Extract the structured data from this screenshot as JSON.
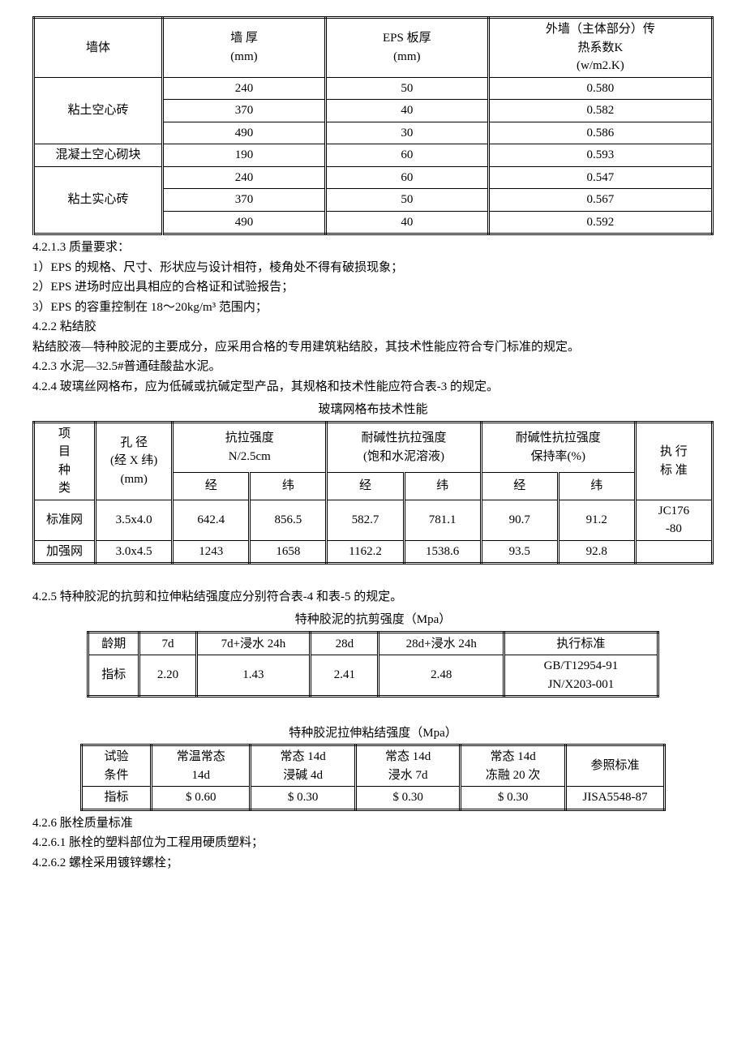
{
  "t1": {
    "h1": "墙体",
    "h2": "墙 厚\n(mm)",
    "h3": "EPS 板厚\n(mm)",
    "h4": "外墙（主体部分）传\n热系数K\n(w/m2.K)",
    "g1": "粘土空心砖",
    "r1c2": "240",
    "r1c3": "50",
    "r1c4": "0.580",
    "r2c2": "370",
    "r2c3": "40",
    "r2c4": "0.582",
    "r3c2": "490",
    "r3c3": "30",
    "r3c4": "0.586",
    "g2": "混凝土空心砌块",
    "r4c2": "190",
    "r4c3": "60",
    "r4c4": "0.593",
    "g3": "粘土实心砖",
    "r5c2": "240",
    "r5c3": "60",
    "r5c4": "0.547",
    "r6c2": "370",
    "r6c3": "50",
    "r6c4": "0.567",
    "r7c2": "490",
    "r7c3": "40",
    "r7c4": "0.592"
  },
  "text": {
    "p1": "4.2.1.3 质量要求：",
    "p2": "1）EPS 的规格、尺寸、形状应与设计相符，棱角处不得有破损现象；",
    "p3": "2）EPS 进场时应出具相应的合格证和试验报告；",
    "p4": "3）EPS 的容重控制在 18～20kg/m³ 范围内；",
    "p5": "4.2.2 粘结胶",
    "p6": "粘结胶液—特种胶泥的主要成分，应采用合格的专用建筑粘结胶，其技术性能应符合专门标准的规定。",
    "p7": "4.2.3 水泥—32.5#普通硅酸盐水泥。",
    "p8": "4.2.4 玻璃丝网格布，应为低碱或抗碱定型产品，其规格和技术性能应符合表-3 的规定。",
    "cap2": "玻璃网格布技术性能",
    "p9": "4.2.5 特种胶泥的抗剪和拉伸粘结强度应分别符合表-4 和表-5 的规定。",
    "cap3": "特种胶泥的抗剪强度（Mpa）",
    "cap4": "特种胶泥拉伸粘结强度（Mpa）",
    "p10": "4.2.6 胀栓质量标准",
    "p11": "4.2.6.1 胀栓的塑料部位为工程用硬质塑料；",
    "p12": "4.2.6.2 螺栓采用镀锌螺栓；"
  },
  "t2": {
    "h1": "项\n目\n种\n类",
    "h2": "孔 径\n(经 X 纬)\n(mm)",
    "h3": "抗拉强度\nN/2.5cm",
    "h4": "耐碱性抗拉强度\n(饱和水泥溶液)",
    "h5": "耐碱性抗拉强度\n保持率(%)",
    "h6": "执 行\n标 准",
    "sub_j": "经",
    "sub_w": "纬",
    "r1c1": "标准网",
    "r1c2": "3.5x4.0",
    "r1c3": "642.4",
    "r1c4": "856.5",
    "r1c5": "582.7",
    "r1c6": "781.1",
    "r1c7": "90.7",
    "r1c8": "91.2",
    "r1c9": "JC176\n-80",
    "r2c1": "加强网",
    "r2c2": "3.0x4.5",
    "r2c3": "1243",
    "r2c4": "1658",
    "r2c5": "1162.2",
    "r2c6": "1538.6",
    "r2c7": "93.5",
    "r2c8": "92.8",
    "r2c9": ""
  },
  "t3": {
    "h1": "龄期",
    "h2": "7d",
    "h3": "7d+浸水 24h",
    "h4": "28d",
    "h5": "28d+浸水 24h",
    "h6": "执行标准",
    "r1c1": "指标",
    "r1c2": "2.20",
    "r1c3": "1.43",
    "r1c4": "2.41",
    "r1c5": "2.48",
    "r1c6": "GB/T12954-91\nJN/X203-001"
  },
  "t4": {
    "h1": "试验\n条件",
    "h2": "常温常态\n14d",
    "h3": "常态 14d\n浸碱 4d",
    "h4": "常态 14d\n浸水 7d",
    "h5": "常态 14d\n冻融 20 次",
    "h6": "参照标准",
    "r1c1": "指标",
    "r1c2": "$ 0.60",
    "r1c3": "$ 0.30",
    "r1c4": "$ 0.30",
    "r1c5": "$ 0.30",
    "r1c6": "JISA5548-87"
  }
}
